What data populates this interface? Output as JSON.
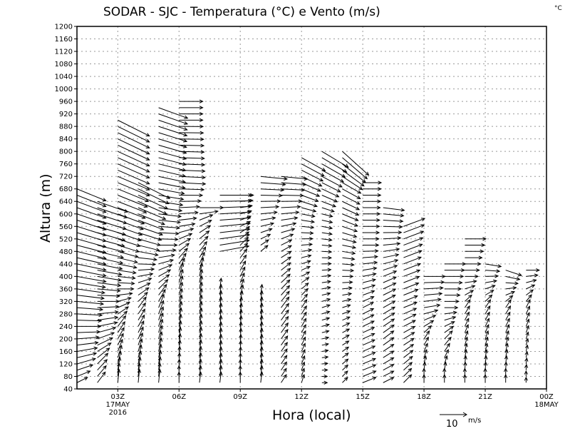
{
  "chart_data": {
    "type": "vector-field",
    "title": "SODAR - SJC - Temperatura (°C) e Vento (m/s)",
    "corner_label": "°C",
    "xlabel": "Hora (local)",
    "ylabel": "Altura (m)",
    "ylim": [
      40,
      1200
    ],
    "y_ticks": [
      40,
      80,
      120,
      160,
      200,
      240,
      280,
      320,
      360,
      400,
      440,
      480,
      520,
      560,
      600,
      640,
      680,
      720,
      760,
      800,
      840,
      880,
      920,
      960,
      1000,
      1040,
      1080,
      1120,
      1160,
      1200
    ],
    "xlim_hours": [
      1,
      24
    ],
    "x_ticks": [
      {
        "hour": 3,
        "label": "03Z",
        "sub": [
          "17MAY",
          "2016"
        ]
      },
      {
        "hour": 6,
        "label": "06Z",
        "sub": []
      },
      {
        "hour": 9,
        "label": "09Z",
        "sub": []
      },
      {
        "hour": 12,
        "label": "12Z",
        "sub": []
      },
      {
        "hour": 15,
        "label": "15Z",
        "sub": []
      },
      {
        "hour": 18,
        "label": "18Z",
        "sub": []
      },
      {
        "hour": 21,
        "label": "21Z",
        "sub": []
      },
      {
        "hour": 24,
        "label": "00Z",
        "sub": [
          "18MAY"
        ]
      }
    ],
    "grid": true,
    "reference_vector": {
      "value": 10,
      "label": "10",
      "unit": "m/s"
    },
    "level_step_m": 20,
    "columns": [
      {
        "hour": 1,
        "ranges": [
          [
            60,
            680
          ]
        ],
        "profile": [
          [
            60,
            4,
            2
          ],
          [
            120,
            7,
            2
          ],
          [
            240,
            9,
            0
          ],
          [
            400,
            11,
            -2
          ],
          [
            680,
            11,
            -4.5
          ]
        ]
      },
      {
        "hour": 2,
        "ranges": [
          [
            60,
            640
          ]
        ],
        "profile": [
          [
            60,
            3,
            4
          ],
          [
            120,
            4,
            4
          ],
          [
            240,
            7.5,
            1.5
          ],
          [
            400,
            9,
            -1.5
          ],
          [
            640,
            11.5,
            -4
          ]
        ]
      },
      {
        "hour": 3,
        "ranges": [
          [
            60,
            900
          ]
        ],
        "profile": [
          [
            80,
            0.5,
            5
          ],
          [
            240,
            3,
            4
          ],
          [
            360,
            6,
            0
          ],
          [
            500,
            8,
            -2.5
          ],
          [
            700,
            12,
            -5
          ],
          [
            900,
            12,
            -6
          ]
        ]
      },
      {
        "hour": 4,
        "ranges": [
          [
            60,
            700
          ]
        ],
        "profile": [
          [
            80,
            0.5,
            5
          ],
          [
            300,
            3,
            4
          ],
          [
            500,
            8,
            -2
          ],
          [
            700,
            12,
            -6
          ]
        ]
      },
      {
        "hour": 5,
        "ranges": [
          [
            60,
            940
          ]
        ],
        "profile": [
          [
            80,
            0.5,
            5
          ],
          [
            300,
            2,
            5
          ],
          [
            500,
            7,
            0
          ],
          [
            700,
            10,
            -2
          ],
          [
            940,
            11,
            -4
          ]
        ]
      },
      {
        "hour": 6,
        "ranges": [
          [
            60,
            960
          ]
        ],
        "profile": [
          [
            80,
            0,
            4
          ],
          [
            400,
            1.5,
            5
          ],
          [
            560,
            6,
            1
          ],
          [
            700,
            10,
            -0.5
          ],
          [
            900,
            9,
            0
          ],
          [
            960,
            9,
            0
          ]
        ]
      },
      {
        "hour": 7,
        "ranges": [
          [
            60,
            620
          ]
        ],
        "profile": [
          [
            80,
            0.5,
            4
          ],
          [
            400,
            1,
            5
          ],
          [
            580,
            5,
            2
          ],
          [
            620,
            9,
            0
          ]
        ]
      },
      {
        "hour": 8,
        "ranges": [
          [
            60,
            360
          ],
          [
            480,
            660
          ]
        ],
        "profile": [
          [
            80,
            0.5,
            4
          ],
          [
            360,
            0.5,
            4
          ],
          [
            480,
            11,
            2
          ],
          [
            660,
            12,
            0
          ]
        ]
      },
      {
        "hour": 9,
        "ranges": [
          [
            60,
            660
          ]
        ],
        "profile": [
          [
            80,
            0,
            4
          ],
          [
            300,
            0.5,
            4
          ],
          [
            500,
            3,
            3
          ],
          [
            660,
            5,
            0
          ]
        ]
      },
      {
        "hour": 10,
        "ranges": [
          [
            60,
            340
          ],
          [
            480,
            720
          ]
        ],
        "profile": [
          [
            80,
            0.5,
            4
          ],
          [
            340,
            0.5,
            4
          ],
          [
            500,
            3,
            2
          ],
          [
            720,
            10,
            -1
          ]
        ]
      },
      {
        "hour": 11,
        "ranges": [
          [
            60,
            720
          ]
        ],
        "profile": [
          [
            80,
            2,
            3
          ],
          [
            300,
            3,
            4
          ],
          [
            500,
            4,
            2
          ],
          [
            720,
            10,
            -1
          ]
        ]
      },
      {
        "hour": 12,
        "ranges": [
          [
            60,
            780
          ]
        ],
        "profile": [
          [
            80,
            1,
            3
          ],
          [
            300,
            2,
            3
          ],
          [
            600,
            5,
            -1
          ],
          [
            780,
            9,
            -5
          ]
        ]
      },
      {
        "hour": 13,
        "ranges": [
          [
            60,
            800
          ]
        ],
        "profile": [
          [
            80,
            2,
            0
          ],
          [
            300,
            3,
            1
          ],
          [
            600,
            4,
            -1
          ],
          [
            800,
            10,
            -6
          ]
        ]
      },
      {
        "hour": 14,
        "ranges": [
          [
            60,
            800
          ]
        ],
        "profile": [
          [
            80,
            2,
            2
          ],
          [
            300,
            3,
            1
          ],
          [
            500,
            5,
            -1
          ],
          [
            700,
            7,
            -4
          ],
          [
            800,
            10,
            -9
          ]
        ]
      },
      {
        "hour": 15,
        "ranges": [
          [
            60,
            700
          ]
        ],
        "profile": [
          [
            80,
            5,
            2
          ],
          [
            300,
            4,
            2
          ],
          [
            500,
            6,
            0
          ],
          [
            700,
            7,
            0
          ]
        ]
      },
      {
        "hour": 16,
        "ranges": [
          [
            60,
            620
          ]
        ],
        "profile": [
          [
            80,
            4,
            2
          ],
          [
            200,
            4,
            3
          ],
          [
            400,
            5,
            2
          ],
          [
            620,
            8,
            -1
          ]
        ]
      },
      {
        "hour": 17,
        "ranges": [
          [
            60,
            560
          ]
        ],
        "profile": [
          [
            80,
            3,
            3
          ],
          [
            300,
            5,
            2
          ],
          [
            560,
            8,
            3
          ]
        ]
      },
      {
        "hour": 18,
        "ranges": [
          [
            60,
            400
          ]
        ],
        "profile": [
          [
            80,
            0,
            3
          ],
          [
            200,
            2,
            3
          ],
          [
            300,
            6,
            1
          ],
          [
            400,
            8,
            0
          ]
        ]
      },
      {
        "hour": 19,
        "ranges": [
          [
            60,
            440
          ]
        ],
        "profile": [
          [
            80,
            0,
            3
          ],
          [
            200,
            3,
            3
          ],
          [
            300,
            5,
            0
          ],
          [
            440,
            8,
            0
          ]
        ]
      },
      {
        "hour": 20,
        "ranges": [
          [
            60,
            520
          ]
        ],
        "profile": [
          [
            80,
            0,
            3
          ],
          [
            300,
            2,
            3
          ],
          [
            400,
            5,
            0
          ],
          [
            520,
            8,
            0
          ]
        ]
      },
      {
        "hour": 21,
        "ranges": [
          [
            60,
            440
          ]
        ],
        "profile": [
          [
            80,
            0,
            3
          ],
          [
            300,
            2,
            3
          ],
          [
            440,
            6,
            -1
          ]
        ]
      },
      {
        "hour": 22,
        "ranges": [
          [
            60,
            420
          ]
        ],
        "profile": [
          [
            80,
            0,
            3
          ],
          [
            300,
            2,
            3
          ],
          [
            420,
            6,
            -2
          ]
        ]
      },
      {
        "hour": 23,
        "ranges": [
          [
            60,
            420
          ]
        ],
        "profile": [
          [
            80,
            0,
            2
          ],
          [
            300,
            1.5,
            3
          ],
          [
            420,
            5,
            0
          ]
        ]
      }
    ]
  }
}
